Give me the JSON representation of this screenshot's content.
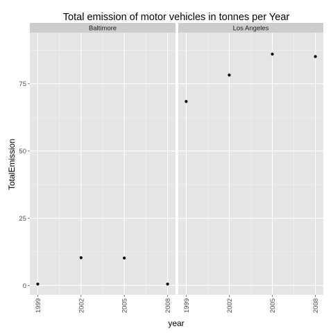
{
  "chart_data": {
    "type": "scatter",
    "title": "Total emission of motor vehicles in tonnes per Year",
    "xlabel": "year",
    "ylabel": "TotalEmission",
    "x_ticks": [
      "1999",
      "2002",
      "2005",
      "2008"
    ],
    "y_ticks": [
      "0",
      "25",
      "50",
      "75"
    ],
    "ylim": [
      -3.5,
      94
    ],
    "xlim": [
      1998.45,
      2008.55
    ],
    "grid": true,
    "colors": {
      "panel": "#e5e5e5",
      "strip": "#cccccc",
      "grid_major": "#ffffff",
      "grid_minor": "#f2f2f2",
      "point": "#000000"
    },
    "facets": [
      {
        "name": "Baltimore",
        "x": [
          1999,
          2002,
          2005,
          2008
        ],
        "y": [
          0.5,
          10.3,
          10.2,
          0.5
        ]
      },
      {
        "name": "Los Angeles",
        "x": [
          1999,
          2002,
          2005,
          2008
        ],
        "y": [
          68.4,
          78.2,
          86.0,
          85.1
        ]
      }
    ]
  }
}
